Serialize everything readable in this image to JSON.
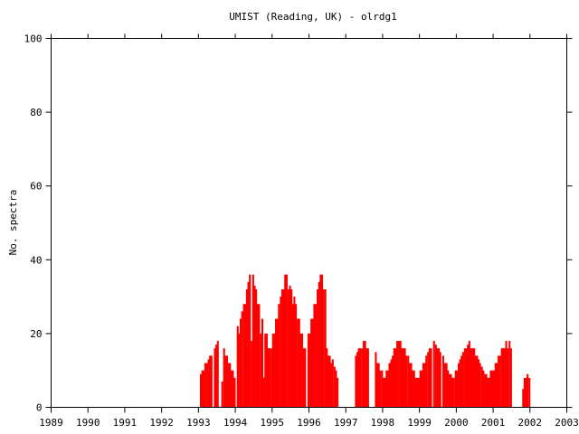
{
  "chart_data": {
    "type": "bar",
    "title": "UMIST (Reading, UK) - olrdg1",
    "xlabel": "",
    "ylabel": "No. spectra",
    "xlim": [
      1989,
      2003
    ],
    "ylim": [
      0,
      100
    ],
    "x_ticks": [
      "1989",
      "1990",
      "1991",
      "1992",
      "1993",
      "1994",
      "1995",
      "1996",
      "1997",
      "1998",
      "1999",
      "2000",
      "2001",
      "2002",
      "2003"
    ],
    "y_ticks": [
      "0",
      "20",
      "40",
      "60",
      "80",
      "100"
    ],
    "bar_color": "#ff0000",
    "grid": false,
    "bars": [
      {
        "t": 1993.04,
        "v": 9
      },
      {
        "t": 1993.08,
        "v": 10
      },
      {
        "t": 1993.12,
        "v": 10
      },
      {
        "t": 1993.16,
        "v": 12
      },
      {
        "t": 1993.21,
        "v": 12
      },
      {
        "t": 1993.25,
        "v": 13
      },
      {
        "t": 1993.29,
        "v": 14
      },
      {
        "t": 1993.33,
        "v": 14
      },
      {
        "t": 1993.42,
        "v": 16
      },
      {
        "t": 1993.46,
        "v": 17
      },
      {
        "t": 1993.5,
        "v": 18
      },
      {
        "t": 1993.62,
        "v": 7
      },
      {
        "t": 1993.67,
        "v": 16
      },
      {
        "t": 1993.71,
        "v": 14
      },
      {
        "t": 1993.75,
        "v": 14
      },
      {
        "t": 1993.79,
        "v": 12
      },
      {
        "t": 1993.83,
        "v": 12
      },
      {
        "t": 1993.87,
        "v": 10
      },
      {
        "t": 1993.91,
        "v": 10
      },
      {
        "t": 1993.96,
        "v": 8
      },
      {
        "t": 1994.04,
        "v": 22
      },
      {
        "t": 1994.08,
        "v": 20
      },
      {
        "t": 1994.12,
        "v": 24
      },
      {
        "t": 1994.16,
        "v": 26
      },
      {
        "t": 1994.21,
        "v": 28
      },
      {
        "t": 1994.25,
        "v": 28
      },
      {
        "t": 1994.29,
        "v": 32
      },
      {
        "t": 1994.33,
        "v": 34
      },
      {
        "t": 1994.37,
        "v": 36
      },
      {
        "t": 1994.42,
        "v": 18
      },
      {
        "t": 1994.46,
        "v": 36
      },
      {
        "t": 1994.5,
        "v": 33
      },
      {
        "t": 1994.54,
        "v": 32
      },
      {
        "t": 1994.58,
        "v": 28
      },
      {
        "t": 1994.62,
        "v": 28
      },
      {
        "t": 1994.67,
        "v": 20
      },
      {
        "t": 1994.71,
        "v": 24
      },
      {
        "t": 1994.75,
        "v": 8
      },
      {
        "t": 1994.79,
        "v": 20
      },
      {
        "t": 1994.83,
        "v": 20
      },
      {
        "t": 1994.87,
        "v": 16
      },
      {
        "t": 1994.91,
        "v": 16
      },
      {
        "t": 1994.96,
        "v": 16
      },
      {
        "t": 1995.0,
        "v": 20
      },
      {
        "t": 1995.04,
        "v": 20
      },
      {
        "t": 1995.08,
        "v": 24
      },
      {
        "t": 1995.12,
        "v": 24
      },
      {
        "t": 1995.16,
        "v": 28
      },
      {
        "t": 1995.21,
        "v": 30
      },
      {
        "t": 1995.25,
        "v": 32
      },
      {
        "t": 1995.29,
        "v": 32
      },
      {
        "t": 1995.33,
        "v": 36
      },
      {
        "t": 1995.37,
        "v": 36
      },
      {
        "t": 1995.42,
        "v": 32
      },
      {
        "t": 1995.46,
        "v": 33
      },
      {
        "t": 1995.5,
        "v": 32
      },
      {
        "t": 1995.54,
        "v": 28
      },
      {
        "t": 1995.58,
        "v": 30
      },
      {
        "t": 1995.62,
        "v": 28
      },
      {
        "t": 1995.67,
        "v": 24
      },
      {
        "t": 1995.71,
        "v": 24
      },
      {
        "t": 1995.75,
        "v": 20
      },
      {
        "t": 1995.79,
        "v": 20
      },
      {
        "t": 1995.83,
        "v": 16
      },
      {
        "t": 1995.87,
        "v": 16
      },
      {
        "t": 1995.96,
        "v": 20
      },
      {
        "t": 1996.0,
        "v": 20
      },
      {
        "t": 1996.04,
        "v": 24
      },
      {
        "t": 1996.08,
        "v": 24
      },
      {
        "t": 1996.12,
        "v": 28
      },
      {
        "t": 1996.16,
        "v": 28
      },
      {
        "t": 1996.21,
        "v": 32
      },
      {
        "t": 1996.25,
        "v": 34
      },
      {
        "t": 1996.29,
        "v": 36
      },
      {
        "t": 1996.33,
        "v": 36
      },
      {
        "t": 1996.37,
        "v": 32
      },
      {
        "t": 1996.42,
        "v": 32
      },
      {
        "t": 1996.46,
        "v": 16
      },
      {
        "t": 1996.5,
        "v": 14
      },
      {
        "t": 1996.54,
        "v": 14
      },
      {
        "t": 1996.58,
        "v": 12
      },
      {
        "t": 1996.62,
        "v": 13
      },
      {
        "t": 1996.67,
        "v": 11
      },
      {
        "t": 1996.71,
        "v": 10
      },
      {
        "t": 1996.75,
        "v": 8
      },
      {
        "t": 1997.25,
        "v": 14
      },
      {
        "t": 1997.29,
        "v": 15
      },
      {
        "t": 1997.33,
        "v": 16
      },
      {
        "t": 1997.37,
        "v": 16
      },
      {
        "t": 1997.42,
        "v": 16
      },
      {
        "t": 1997.46,
        "v": 18
      },
      {
        "t": 1997.5,
        "v": 18
      },
      {
        "t": 1997.54,
        "v": 16
      },
      {
        "t": 1997.58,
        "v": 16
      },
      {
        "t": 1997.79,
        "v": 15
      },
      {
        "t": 1997.83,
        "v": 12
      },
      {
        "t": 1997.87,
        "v": 12
      },
      {
        "t": 1997.91,
        "v": 10
      },
      {
        "t": 1997.96,
        "v": 10
      },
      {
        "t": 1998.0,
        "v": 8
      },
      {
        "t": 1998.04,
        "v": 8
      },
      {
        "t": 1998.08,
        "v": 10
      },
      {
        "t": 1998.12,
        "v": 10
      },
      {
        "t": 1998.16,
        "v": 12
      },
      {
        "t": 1998.21,
        "v": 13
      },
      {
        "t": 1998.25,
        "v": 14
      },
      {
        "t": 1998.29,
        "v": 16
      },
      {
        "t": 1998.33,
        "v": 16
      },
      {
        "t": 1998.37,
        "v": 18
      },
      {
        "t": 1998.42,
        "v": 18
      },
      {
        "t": 1998.46,
        "v": 18
      },
      {
        "t": 1998.5,
        "v": 16
      },
      {
        "t": 1998.54,
        "v": 16
      },
      {
        "t": 1998.58,
        "v": 16
      },
      {
        "t": 1998.62,
        "v": 14
      },
      {
        "t": 1998.67,
        "v": 14
      },
      {
        "t": 1998.71,
        "v": 12
      },
      {
        "t": 1998.75,
        "v": 12
      },
      {
        "t": 1998.79,
        "v": 10
      },
      {
        "t": 1998.83,
        "v": 10
      },
      {
        "t": 1998.87,
        "v": 8
      },
      {
        "t": 1998.91,
        "v": 8
      },
      {
        "t": 1998.96,
        "v": 8
      },
      {
        "t": 1999.0,
        "v": 10
      },
      {
        "t": 1999.04,
        "v": 10
      },
      {
        "t": 1999.08,
        "v": 12
      },
      {
        "t": 1999.12,
        "v": 12
      },
      {
        "t": 1999.16,
        "v": 14
      },
      {
        "t": 1999.21,
        "v": 15
      },
      {
        "t": 1999.25,
        "v": 16
      },
      {
        "t": 1999.29,
        "v": 16
      },
      {
        "t": 1999.37,
        "v": 18
      },
      {
        "t": 1999.42,
        "v": 17
      },
      {
        "t": 1999.46,
        "v": 16
      },
      {
        "t": 1999.5,
        "v": 16
      },
      {
        "t": 1999.54,
        "v": 15
      },
      {
        "t": 1999.62,
        "v": 14
      },
      {
        "t": 1999.67,
        "v": 12
      },
      {
        "t": 1999.71,
        "v": 12
      },
      {
        "t": 1999.75,
        "v": 10
      },
      {
        "t": 1999.79,
        "v": 9
      },
      {
        "t": 1999.83,
        "v": 9
      },
      {
        "t": 1999.87,
        "v": 8
      },
      {
        "t": 1999.91,
        "v": 8
      },
      {
        "t": 1999.96,
        "v": 10
      },
      {
        "t": 2000.0,
        "v": 10
      },
      {
        "t": 2000.04,
        "v": 12
      },
      {
        "t": 2000.08,
        "v": 13
      },
      {
        "t": 2000.12,
        "v": 14
      },
      {
        "t": 2000.16,
        "v": 15
      },
      {
        "t": 2000.21,
        "v": 16
      },
      {
        "t": 2000.25,
        "v": 16
      },
      {
        "t": 2000.29,
        "v": 17
      },
      {
        "t": 2000.33,
        "v": 18
      },
      {
        "t": 2000.37,
        "v": 16
      },
      {
        "t": 2000.42,
        "v": 16
      },
      {
        "t": 2000.46,
        "v": 16
      },
      {
        "t": 2000.5,
        "v": 14
      },
      {
        "t": 2000.54,
        "v": 14
      },
      {
        "t": 2000.58,
        "v": 13
      },
      {
        "t": 2000.62,
        "v": 12
      },
      {
        "t": 2000.67,
        "v": 11
      },
      {
        "t": 2000.71,
        "v": 10
      },
      {
        "t": 2000.75,
        "v": 9
      },
      {
        "t": 2000.79,
        "v": 9
      },
      {
        "t": 2000.83,
        "v": 8
      },
      {
        "t": 2000.87,
        "v": 8
      },
      {
        "t": 2000.91,
        "v": 10
      },
      {
        "t": 2000.96,
        "v": 10
      },
      {
        "t": 2001.0,
        "v": 10
      },
      {
        "t": 2001.04,
        "v": 12
      },
      {
        "t": 2001.08,
        "v": 12
      },
      {
        "t": 2001.12,
        "v": 14
      },
      {
        "t": 2001.16,
        "v": 14
      },
      {
        "t": 2001.21,
        "v": 16
      },
      {
        "t": 2001.25,
        "v": 16
      },
      {
        "t": 2001.29,
        "v": 16
      },
      {
        "t": 2001.33,
        "v": 18
      },
      {
        "t": 2001.37,
        "v": 16
      },
      {
        "t": 2001.42,
        "v": 18
      },
      {
        "t": 2001.46,
        "v": 16
      },
      {
        "t": 2001.79,
        "v": 5
      },
      {
        "t": 2001.83,
        "v": 8
      },
      {
        "t": 2001.87,
        "v": 8
      },
      {
        "t": 2001.91,
        "v": 9
      },
      {
        "t": 2001.96,
        "v": 8
      }
    ]
  }
}
